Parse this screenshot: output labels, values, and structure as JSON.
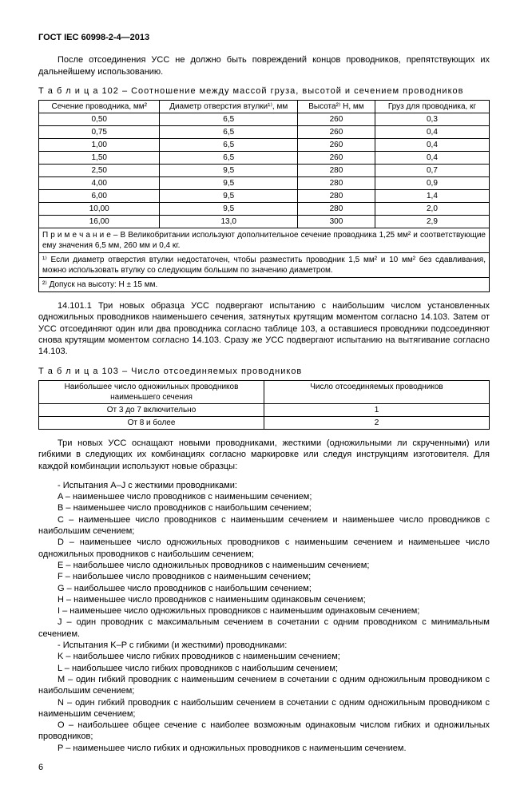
{
  "header": "ГОСТ IEC 60998-2-4—2013",
  "intro_para": "После отсоединения УСС не должно быть повреждений концов проводников, препятствующих их дальнейшему использованию.",
  "table102": {
    "caption_prefix": "Т а б л и ц а",
    "caption": "102 – Соотношение между массой груза, высотой и сечением проводников",
    "headers": [
      "Сечение проводника, мм²",
      "Диаметр отверстия втулки¹⁾, мм",
      "Высота²⁾ H, мм",
      "Груз для проводника, кг"
    ],
    "rows": [
      [
        "0,50",
        "6,5",
        "260",
        "0,3"
      ],
      [
        "0,75",
        "6,5",
        "260",
        "0,4"
      ],
      [
        "1,00",
        "6,5",
        "260",
        "0,4"
      ],
      [
        "1,50",
        "6,5",
        "260",
        "0,4"
      ],
      [
        "2,50",
        "9,5",
        "280",
        "0,7"
      ],
      [
        "4,00",
        "9,5",
        "280",
        "0,9"
      ],
      [
        "6,00",
        "9,5",
        "280",
        "1,4"
      ],
      [
        "10,00",
        "9,5",
        "280",
        "2,0"
      ],
      [
        "16,00",
        "13,0",
        "300",
        "2,9"
      ]
    ],
    "note1": "П р и м е ч а н и е – В Великобритании используют дополнительное сечение проводника 1,25 мм² и соответствующие ему значения 6,5 мм, 260 мм и 0,4 кг.",
    "note2": "¹⁾ Если диаметр отверстия втулки недостаточен, чтобы разместить проводник 1,5 мм² и 10 мм² без сдавливания, можно использовать втулку со следующим большим по значению диаметром.",
    "note3": "²⁾ Допуск на высоту: H ± 15 мм."
  },
  "para_14_101_1": "14.101.1 Три новых образца УСС подвергают испытанию с наибольшим числом установленных одножильных проводников наименьшего сечения, затянутых крутящим моментом согласно 14.103. Затем от УСС отсоединяют один или два проводника согласно таблице 103, а оставшиеся проводники подсоединяют снова крутящим моментом согласно 14.103. Сразу же УСС подвергают испытанию на вытягивание согласно 14.103.",
  "table103": {
    "caption_prefix": "Т а б л и ц а",
    "caption": "103 – Число отсоединяемых проводников",
    "headers": [
      "Наибольшее число одножильных проводников наименьшего сечения",
      "Число отсоединяемых проводников"
    ],
    "rows": [
      [
        "От 3 до 7 включительно",
        "1"
      ],
      [
        "От 8 и более",
        "2"
      ]
    ]
  },
  "para_after_103": "Три новых УСС оснащают новыми проводниками, жесткими (одножильными ли скрученными) или гибкими в следующих их комбинациях согласно маркировке или следуя инструкциям изготовителя. Для каждой комбинации используют новые образцы:",
  "list": [
    "- Испытания A–J с жесткими проводниками:",
    "A – наименьшее число проводников с наименьшим сечением;",
    "B – наименьшее число проводников с наибольшим сечением;",
    "C – наименьшее число проводников с наименьшим сечением и наименьшее число проводников с наибольшим сечением;",
    "D – наименьшее число одножильных проводников с наименьшим сечением и наименьшее число одножильных проводников с наибольшим сечением;",
    "E – наибольшее число одножильных проводников с наименьшим сечением;",
    "F – наибольшее число проводников с наименьшим сечением;",
    "G – наибольшее число проводников с наибольшим сечением;",
    "H – наименьшее число проводников с наименьшим одинаковым сечением;",
    "I – наименьшее число одножильных проводников с наименьшим одинаковым сечением;",
    "J – один проводник с максимальным сечением в сочетании с одним проводником с минимальным сечением.",
    "- Испытания K–P с гибкими (и жесткими) проводниками:",
    "K – наибольшее число гибких проводников с наименьшим сечением;",
    "L – наибольшее число гибких проводников с наибольшим сечением;",
    "M – один гибкий проводник с наименьшим сечением в сочетании с одним одножильным проводником с наибольшим сечением;",
    "N – один гибкий проводник с наибольшим сечением в сочетании с одним одножильным проводником с наименьшим сечением;",
    "O – наибольшее общее сечение с наиболее возможным одинаковым числом гибких и одножильных проводников;",
    "P – наименьшее число гибких и одножильных проводников с наименьшим сечением."
  ],
  "page_number": "6"
}
